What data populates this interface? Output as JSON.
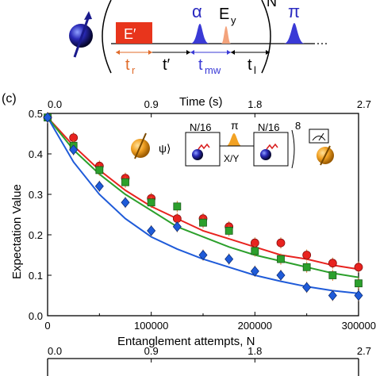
{
  "pulse_sequence": {
    "e_prime_label": "E′",
    "alpha_label": "α",
    "ey_label": "E",
    "ey_subscript": "y",
    "pi_label": "π",
    "n_label": "N",
    "tr_label": "t",
    "tr_sub": "r",
    "tprime_label": "t′",
    "tmw_label": "t",
    "tmw_sub": "mw",
    "tl_label": "t",
    "tl_sub": "l",
    "colors": {
      "e_prime": "#e8351c",
      "pulse": "#3a3ad6",
      "ey": "#f3a37c",
      "tr_text": "#e06b2a"
    }
  },
  "panel_label": "(c)",
  "inset": {
    "psi_label": "ψ⟩",
    "n16_left": "N/16",
    "pi_label": "π",
    "xy_label": "X/Y",
    "n16_right": "N/16",
    "repeat": "8"
  },
  "chart_data": {
    "type": "scatter",
    "xlabel": "Entanglement attempts, N",
    "ylabel": "Expectation Value",
    "top_axis_label": "Time (s)",
    "xlim": [
      0,
      300000
    ],
    "ylim": [
      0.0,
      0.5
    ],
    "top_xlim": [
      0.0,
      2.7
    ],
    "x_ticks": [
      "0",
      "100000",
      "200000",
      "300000"
    ],
    "y_ticks": [
      "0.0",
      "0.1",
      "0.2",
      "0.3",
      "0.4",
      "0.5"
    ],
    "top_ticks": [
      "0.0",
      "0.9",
      "1.8",
      "2.7"
    ],
    "bottom_strip_ticks": [
      "0.0",
      "0.9",
      "1.8",
      "2.7"
    ],
    "series": [
      {
        "marker": "circle",
        "color": "#e8231f",
        "x": [
          0,
          25000,
          50000,
          75000,
          100000,
          125000,
          150000,
          175000,
          200000,
          225000,
          250000,
          275000,
          300000
        ],
        "y": [
          0.49,
          0.44,
          0.37,
          0.34,
          0.29,
          0.24,
          0.24,
          0.22,
          0.18,
          0.18,
          0.15,
          0.13,
          0.12
        ]
      },
      {
        "marker": "square",
        "color": "#2ca02c",
        "x": [
          0,
          25000,
          50000,
          75000,
          100000,
          125000,
          150000,
          175000,
          200000,
          225000,
          250000,
          275000,
          300000
        ],
        "y": [
          0.49,
          0.42,
          0.36,
          0.33,
          0.28,
          0.27,
          0.23,
          0.21,
          0.16,
          0.14,
          0.12,
          0.1,
          0.08
        ]
      },
      {
        "marker": "diamond",
        "color": "#1f5bd9",
        "x": [
          0,
          25000,
          50000,
          75000,
          100000,
          125000,
          150000,
          175000,
          200000,
          225000,
          250000,
          275000,
          300000
        ],
        "y": [
          0.49,
          0.41,
          0.32,
          0.28,
          0.21,
          0.22,
          0.15,
          0.14,
          0.11,
          0.1,
          0.07,
          0.05,
          0.05
        ]
      }
    ],
    "fits": [
      {
        "color": "#e8231f",
        "y": [
          0.49,
          0.42,
          0.36,
          0.31,
          0.27,
          0.24,
          0.21,
          0.19,
          0.17,
          0.15,
          0.14,
          0.125,
          0.115
        ]
      },
      {
        "color": "#2ca02c",
        "y": [
          0.49,
          0.41,
          0.35,
          0.3,
          0.26,
          0.22,
          0.195,
          0.17,
          0.15,
          0.135,
          0.12,
          0.105,
          0.095
        ]
      },
      {
        "color": "#1f5bd9",
        "y": [
          0.49,
          0.38,
          0.3,
          0.24,
          0.195,
          0.165,
          0.14,
          0.12,
          0.1,
          0.085,
          0.072,
          0.062,
          0.055
        ]
      }
    ],
    "grid": false
  }
}
